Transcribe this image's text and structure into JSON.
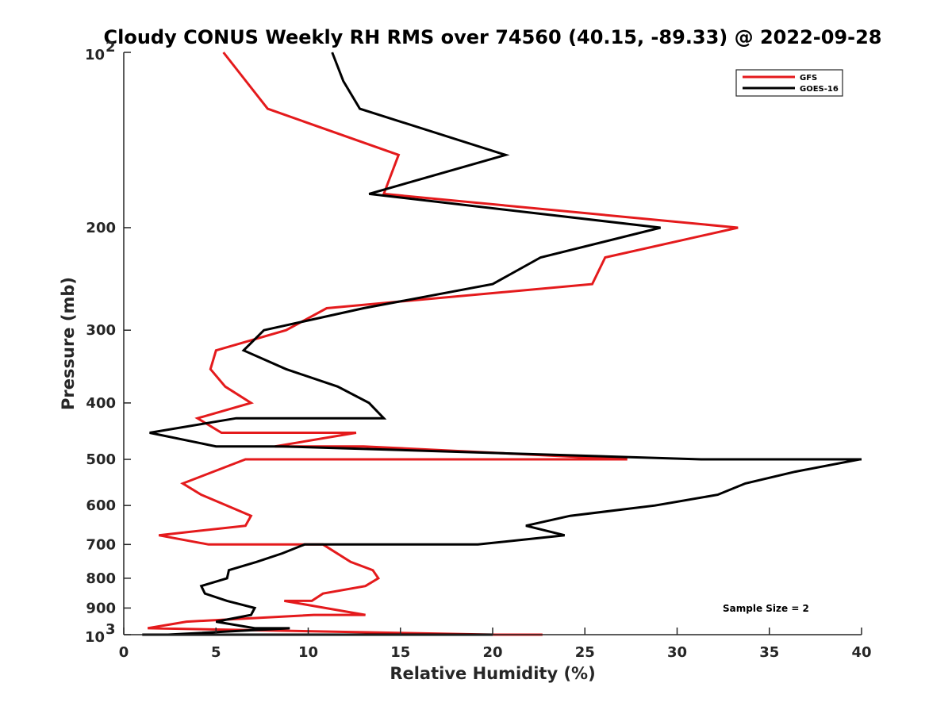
{
  "chart_data": {
    "type": "line",
    "title": "Cloudy CONUS Weekly RH RMS over 74560 (40.15, -89.33) @ 2022-09-28",
    "xlabel": "Relative Humidity (%)",
    "ylabel": "Pressure (mb)",
    "xlim": [
      0,
      40
    ],
    "ylim": [
      100,
      1000
    ],
    "yscale": "log",
    "y_reversed": true,
    "x_ticks": [
      0,
      5,
      10,
      15,
      20,
      25,
      30,
      35,
      40
    ],
    "x_tick_labels": [
      "0",
      "5",
      "10",
      "15",
      "20",
      "25",
      "30",
      "35",
      "40"
    ],
    "y_ticks": [
      100,
      200,
      300,
      400,
      500,
      600,
      700,
      800,
      900,
      1000
    ],
    "y_tick_labels": [
      "",
      "200",
      "300",
      "400",
      "500",
      "600",
      "700",
      "800",
      "900",
      ""
    ],
    "y_tick_base": "10",
    "y_tick_exp_top": "2",
    "y_tick_exp_bottom": "3",
    "legend_position": "top-right",
    "annotation": "Sample Size = 2",
    "series": [
      {
        "name": "GFS",
        "color": "#e41a1c",
        "x": [
          5.4,
          7.8,
          14.9,
          14.1,
          33.3,
          26.1,
          25.4,
          11.0,
          8.8,
          5.0,
          4.7,
          5.5,
          6.9,
          4.0,
          5.3,
          12.6,
          8.2,
          13.0,
          27.3,
          6.6,
          3.2,
          4.2,
          6.9,
          6.6,
          1.9,
          4.6,
          10.8,
          12.3,
          13.5,
          13.8,
          13.1,
          10.8,
          10.2,
          8.7,
          13.1,
          10.3,
          3.4,
          1.3,
          20.0,
          22.7
        ],
        "y": [
          100,
          125,
          150,
          175,
          200,
          225,
          250,
          275,
          300,
          325,
          350,
          375,
          400,
          425,
          450,
          450,
          475,
          475,
          500,
          500,
          550,
          575,
          625,
          650,
          675,
          700,
          700,
          750,
          775,
          800,
          825,
          850,
          875,
          875,
          925,
          925,
          950,
          975,
          1000,
          1000
        ]
      },
      {
        "name": "GOES-16",
        "color": "#000000",
        "x": [
          11.3,
          11.9,
          12.8,
          20.7,
          13.3,
          29.1,
          22.6,
          20.0,
          13.0,
          7.6,
          6.5,
          8.8,
          11.6,
          13.3,
          14.1,
          6.1,
          1.4,
          5.0,
          8.6,
          31.3,
          40.0,
          39.9,
          36.4,
          33.7,
          32.2,
          28.8,
          24.2,
          21.8,
          23.9,
          19.2,
          9.8,
          8.6,
          7.2,
          5.7,
          5.6,
          4.2,
          4.4,
          5.6,
          7.1,
          6.9,
          5.0,
          7.1,
          9.0,
          2.4,
          1.0,
          20.0
        ],
        "y": [
          100,
          112,
          125,
          150,
          175,
          200,
          225,
          250,
          275,
          300,
          325,
          350,
          375,
          400,
          425,
          425,
          450,
          475,
          475,
          500,
          500,
          500,
          525,
          550,
          575,
          600,
          625,
          650,
          675,
          700,
          700,
          725,
          750,
          775,
          800,
          825,
          850,
          875,
          900,
          925,
          950,
          975,
          975,
          1000,
          1000,
          1000
        ]
      }
    ]
  }
}
